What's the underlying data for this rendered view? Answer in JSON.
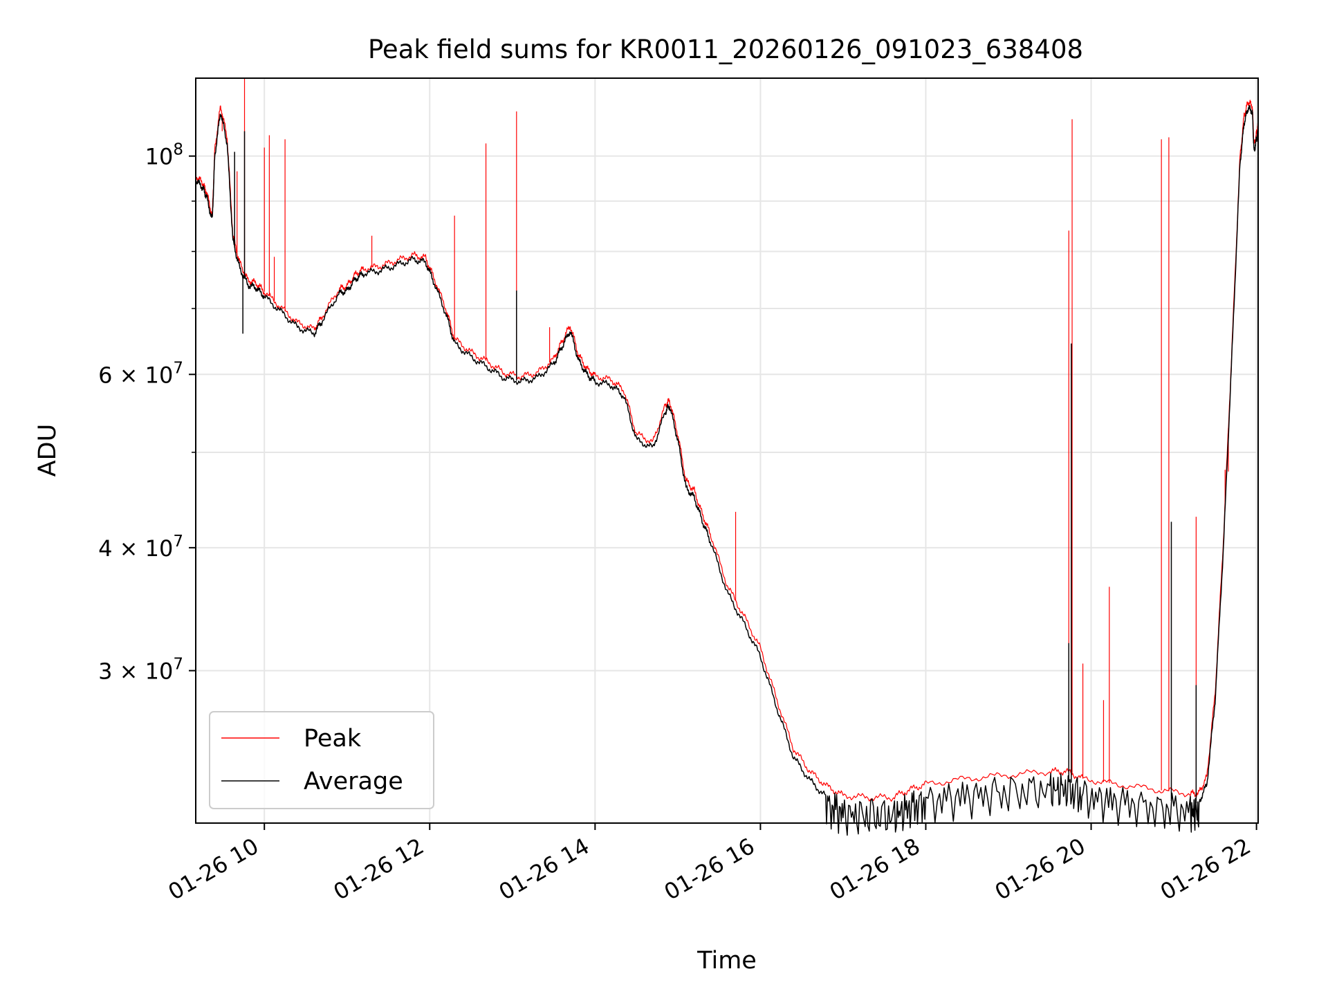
{
  "chart_data": {
    "type": "line",
    "title": "Peak field sums for KR0011_20260126_091023_638408",
    "xlabel": "Time",
    "ylabel": "ADU",
    "yscale": "log",
    "grid": true,
    "legend_position": "lower-left",
    "xlim": [
      9.17,
      22.02
    ],
    "ylim": [
      21000000,
      120000000
    ],
    "x_ticks": [
      10,
      12,
      14,
      16,
      18,
      20,
      22
    ],
    "x_tick_labels": [
      "01-26 10",
      "01-26 12",
      "01-26 14",
      "01-26 16",
      "01-26 18",
      "01-26 20",
      "01-26 22"
    ],
    "y_major_ticks": [
      {
        "value": 100000000,
        "base": "10",
        "exp": "8"
      },
      {
        "value": 60000000,
        "mant": "6",
        "base": "10",
        "exp": "7"
      },
      {
        "value": 40000000,
        "mant": "4",
        "base": "10",
        "exp": "7"
      },
      {
        "value": 30000000,
        "mant": "3",
        "base": "10",
        "exp": "7"
      }
    ],
    "y_minor_gridlines": [
      50000000,
      70000000,
      80000000,
      90000000
    ],
    "x_unit": "hours since 2026-01-26 00:00",
    "series": [
      {
        "name": "Average",
        "color": "#000000",
        "line_width": 1.5,
        "x": [
          9.17,
          9.25,
          9.3,
          9.37,
          9.4,
          9.47,
          9.55,
          9.62,
          9.7,
          9.8,
          9.9,
          10.0,
          10.2,
          10.4,
          10.6,
          10.7,
          10.9,
          11.0,
          11.1,
          11.2,
          11.4,
          11.6,
          11.8,
          11.95,
          12.05,
          12.2,
          12.3,
          12.5,
          12.7,
          12.9,
          13.1,
          13.3,
          13.5,
          13.6,
          13.7,
          13.8,
          13.9,
          14.0,
          14.2,
          14.35,
          14.5,
          14.7,
          14.85,
          14.9,
          15.0,
          15.1,
          15.2,
          15.3,
          15.4,
          15.6,
          15.8,
          16.0,
          16.2,
          16.4,
          16.6,
          16.8,
          17.0,
          17.3,
          17.6,
          17.8,
          18.0,
          18.5,
          19.0,
          19.5,
          19.7,
          19.9,
          20.3,
          20.8,
          21.2,
          21.3,
          21.4,
          21.5,
          21.6,
          21.7,
          21.8,
          21.85,
          21.9,
          21.95,
          21.97,
          22.0,
          22.02
        ],
        "y": [
          94500000,
          93000000,
          91000000,
          86000000,
          100000000,
          111000000,
          103000000,
          82000000,
          77000000,
          74000000,
          73500000,
          72000000,
          69500000,
          67000000,
          66000000,
          68000000,
          72500000,
          73000000,
          75000000,
          76000000,
          76500000,
          77500000,
          78500000,
          78000000,
          74500000,
          69000000,
          64500000,
          62500000,
          61000000,
          59500000,
          59000000,
          59500000,
          61500000,
          64000000,
          66500000,
          62000000,
          60000000,
          59000000,
          58500000,
          57000000,
          51500000,
          50500000,
          55000000,
          55800000,
          51500000,
          46000000,
          45000000,
          42500000,
          40500000,
          36000000,
          33500000,
          31000000,
          27500000,
          24500000,
          23200000,
          22300000,
          21900000,
          21800000,
          21800000,
          22200000,
          22500000,
          22800000,
          23000000,
          23200000,
          23200000,
          22800000,
          22500000,
          22200000,
          22000000,
          22000000,
          23000000,
          28000000,
          40000000,
          62000000,
          98000000,
          108000000,
          112000000,
          111000000,
          101000000,
          104000000,
          106000000
        ],
        "noise_ripple": [
          {
            "from": 16.8,
            "to": 21.3,
            "amplitude": 0.034
          }
        ],
        "spikes": [
          {
            "x": 9.64,
            "value": 101000000
          },
          {
            "x": 9.74,
            "value": 66000000
          },
          {
            "x": 9.76,
            "value": 106000000
          },
          {
            "x": 13.05,
            "value": 73000000
          },
          {
            "x": 19.73,
            "value": 32000000
          },
          {
            "x": 19.76,
            "value": 64500000
          },
          {
            "x": 20.97,
            "value": 42500000
          },
          {
            "x": 21.27,
            "value": 29000000
          }
        ]
      },
      {
        "name": "Peak",
        "color": "#ff0000",
        "line_width": 1.2,
        "x": [
          9.17,
          9.25,
          9.3,
          9.37,
          9.4,
          9.47,
          9.55,
          9.62,
          9.7,
          9.8,
          9.9,
          10.0,
          10.2,
          10.4,
          10.6,
          10.7,
          10.9,
          11.0,
          11.1,
          11.2,
          11.4,
          11.6,
          11.8,
          11.95,
          12.05,
          12.2,
          12.3,
          12.5,
          12.7,
          12.9,
          13.1,
          13.3,
          13.5,
          13.6,
          13.7,
          13.8,
          13.9,
          14.0,
          14.2,
          14.35,
          14.5,
          14.7,
          14.85,
          14.9,
          15.0,
          15.1,
          15.2,
          15.3,
          15.4,
          15.6,
          15.8,
          16.0,
          16.2,
          16.4,
          16.6,
          16.8,
          17.0,
          17.3,
          17.6,
          17.8,
          18.0,
          18.5,
          19.0,
          19.5,
          19.7,
          19.9,
          20.3,
          20.8,
          21.2,
          21.3,
          21.4,
          21.5,
          21.6,
          21.7,
          21.8,
          21.85,
          21.9,
          21.95,
          21.97,
          22.0,
          22.02
        ],
        "y": [
          95500000,
          94000000,
          92000000,
          87000000,
          101500000,
          112500000,
          104500000,
          83000000,
          78000000,
          74800000,
          74300000,
          72800000,
          70200000,
          67700000,
          66700000,
          68700000,
          73200000,
          73800000,
          75800000,
          76800000,
          77300000,
          78300000,
          79300000,
          78800000,
          75300000,
          69800000,
          65200000,
          63200000,
          61800000,
          60200000,
          59700000,
          60200000,
          62200000,
          64800000,
          67300000,
          62800000,
          60800000,
          59800000,
          59200000,
          57800000,
          52200000,
          51200000,
          55800000,
          56500000,
          52200000,
          46800000,
          45700000,
          43200000,
          41200000,
          36600000,
          34100000,
          31600000,
          28000000,
          25000000,
          23700000,
          22900000,
          22400000,
          22300000,
          22300000,
          22700000,
          23000000,
          23300000,
          23500000,
          23700000,
          23700000,
          23300000,
          23000000,
          22700000,
          22500000,
          22500000,
          23400000,
          28500000,
          40800000,
          63000000,
          99500000,
          110000000,
          113500000,
          112500000,
          102500000,
          105500000,
          107500000
        ],
        "spikes": [
          {
            "x": 9.49,
            "value": 106000000
          },
          {
            "x": 9.67,
            "value": 96500000
          },
          {
            "x": 9.76,
            "value": 120000000
          },
          {
            "x": 10.0,
            "value": 102000000
          },
          {
            "x": 10.06,
            "value": 105000000
          },
          {
            "x": 10.12,
            "value": 79000000
          },
          {
            "x": 10.25,
            "value": 104000000
          },
          {
            "x": 11.3,
            "value": 83000000
          },
          {
            "x": 12.3,
            "value": 87000000
          },
          {
            "x": 12.68,
            "value": 103000000
          },
          {
            "x": 13.05,
            "value": 111000000
          },
          {
            "x": 13.45,
            "value": 67000000
          },
          {
            "x": 15.7,
            "value": 43500000
          },
          {
            "x": 19.73,
            "value": 84000000
          },
          {
            "x": 19.77,
            "value": 109000000
          },
          {
            "x": 19.9,
            "value": 30500000
          },
          {
            "x": 20.15,
            "value": 28000000
          },
          {
            "x": 20.22,
            "value": 36500000
          },
          {
            "x": 20.85,
            "value": 104000000
          },
          {
            "x": 20.94,
            "value": 104500000
          },
          {
            "x": 21.27,
            "value": 43000000
          },
          {
            "x": 21.62,
            "value": 48000000
          },
          {
            "x": 21.66,
            "value": 47800000
          }
        ]
      }
    ]
  }
}
